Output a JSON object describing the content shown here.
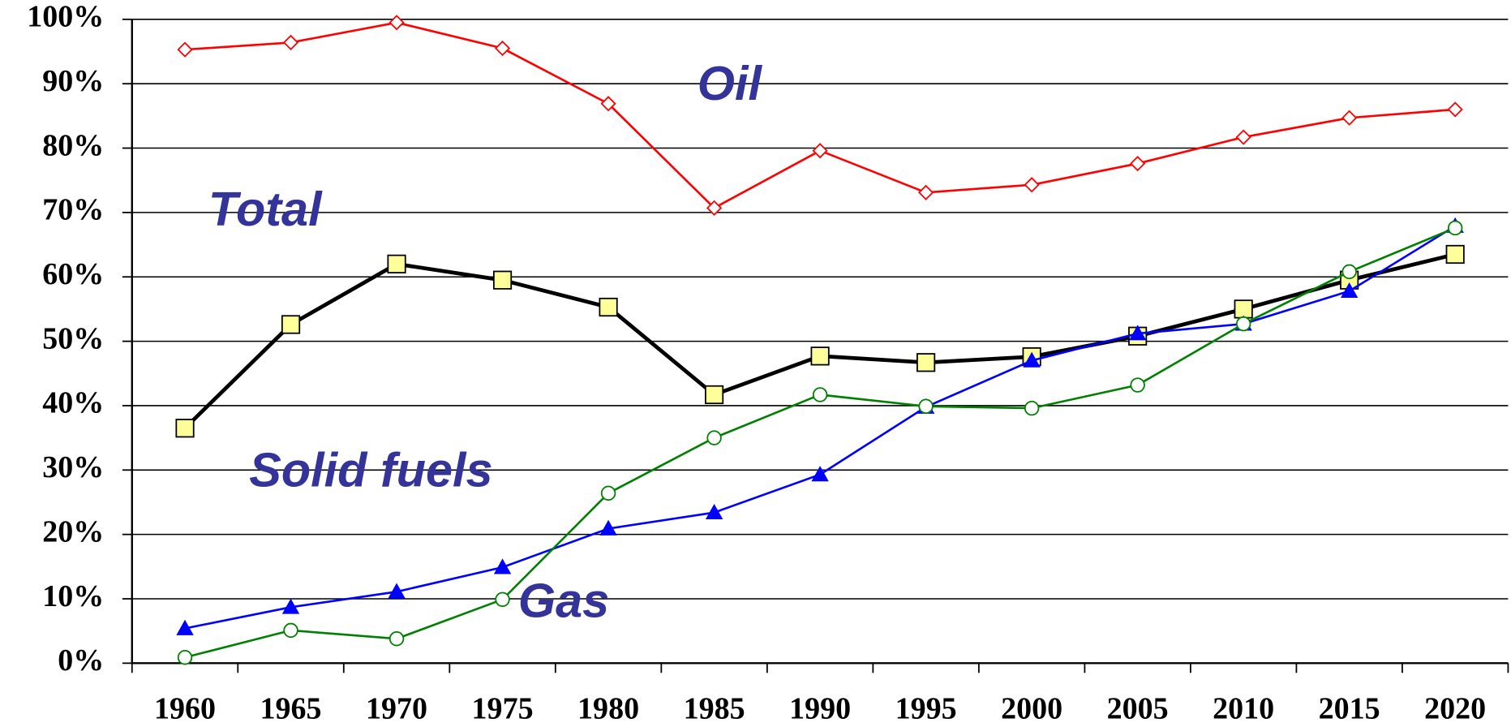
{
  "chart_data": {
    "type": "line",
    "categories": [
      "1960",
      "1965",
      "1970",
      "1975",
      "1980",
      "1985",
      "1990",
      "1995",
      "2000",
      "2005",
      "2010",
      "2015",
      "2020"
    ],
    "series": [
      {
        "name": "Oil",
        "color": "#ff0000",
        "marker": "diamond",
        "values": [
          95.3,
          96.4,
          99.5,
          95.5,
          86.9,
          70.7,
          79.6,
          73.1,
          74.3,
          77.6,
          81.7,
          84.7,
          86.0
        ]
      },
      {
        "name": "Total",
        "color": "#000000",
        "marker": "square",
        "values": [
          36.5,
          52.6,
          62.0,
          59.5,
          55.3,
          41.7,
          47.7,
          46.7,
          47.6,
          50.8,
          55.0,
          59.5,
          63.5
        ]
      },
      {
        "name": "Solid fuels",
        "color": "#0000ff",
        "marker": "triangle",
        "values": [
          5.4,
          8.7,
          11.1,
          14.9,
          20.9,
          23.4,
          29.3,
          39.8,
          47.0,
          51.2,
          52.7,
          57.8,
          67.9
        ]
      },
      {
        "name": "Gas",
        "color": "#008000",
        "marker": "circle",
        "values": [
          0.9,
          5.1,
          3.8,
          9.9,
          26.4,
          35.0,
          41.7,
          39.9,
          39.6,
          43.2,
          52.7,
          60.8,
          67.6
        ]
      }
    ],
    "ylim": [
      0,
      100
    ],
    "yticks": [
      {
        "value": 0,
        "label": "0%"
      },
      {
        "value": 10,
        "label": "10%"
      },
      {
        "value": 20,
        "label": "20%"
      },
      {
        "value": 30,
        "label": "30%"
      },
      {
        "value": 40,
        "label": "40%"
      },
      {
        "value": 50,
        "label": "50%"
      },
      {
        "value": 60,
        "label": "60%"
      },
      {
        "value": 70,
        "label": "70%"
      },
      {
        "value": 80,
        "label": "80%"
      },
      {
        "value": 90,
        "label": "90%"
      },
      {
        "value": 100,
        "label": "100%"
      }
    ],
    "grid": true
  }
}
